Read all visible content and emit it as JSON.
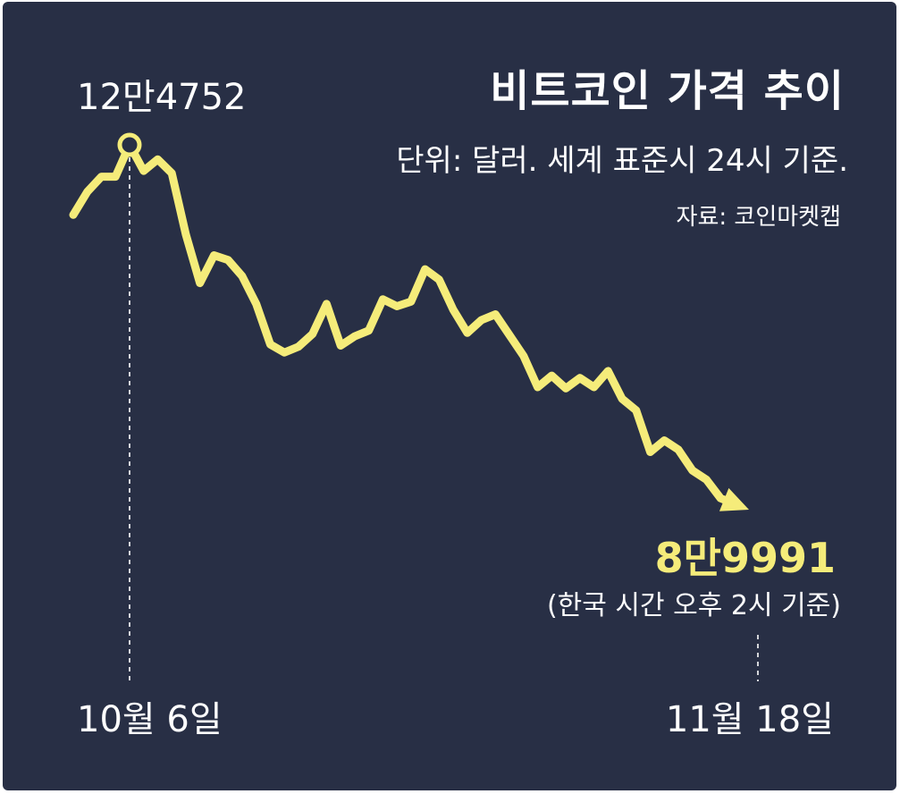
{
  "chart_data": {
    "type": "line",
    "title": "비트코인 가격 추이",
    "subtitle": "단위: 달러. 세계 표준시 24시 기준.",
    "source": "자료: 코인마켓캡",
    "x_start_label": "10월 6일",
    "x_end_label": "11월 18일",
    "start_date": "10월 6일",
    "peak": {
      "label": "12만4752",
      "value": 124752,
      "date": "10월 6일"
    },
    "end": {
      "label": "8만9991",
      "value": 89991,
      "note": "(한국 시간 오후 2시 기준)"
    },
    "series": [
      {
        "x": [
          "10-02",
          "10-03",
          "10-04",
          "10-05",
          "10-06",
          "10-07",
          "10-08",
          "10-09",
          "10-10",
          "10-11",
          "10-12",
          "10-13",
          "10-14",
          "10-15",
          "10-16",
          "10-17",
          "10-18",
          "10-19",
          "10-20",
          "10-21",
          "10-22",
          "10-23",
          "10-24",
          "10-25",
          "10-26",
          "10-27",
          "10-28",
          "10-29",
          "10-30",
          "10-31",
          "11-01",
          "11-02",
          "11-03",
          "11-04",
          "11-05",
          "11-06",
          "11-07",
          "11-08",
          "11-09",
          "11-10",
          "11-11",
          "11-12",
          "11-13",
          "11-14",
          "11-15",
          "11-16",
          "11-17",
          "11-18"
        ],
        "values": [
          118700,
          120700,
          122000,
          122000,
          124752,
          122500,
          123500,
          122300,
          117000,
          112800,
          115200,
          114800,
          113400,
          111000,
          107500,
          106800,
          107300,
          108400,
          111000,
          107400,
          108200,
          108700,
          111400,
          110800,
          111200,
          114000,
          113100,
          110500,
          108500,
          109600,
          110100,
          108300,
          106500,
          103800,
          104800,
          103700,
          104600,
          103800,
          105200,
          102800,
          101800,
          98200,
          99200,
          98400,
          96600,
          95800,
          94200,
          89991
        ]
      }
    ],
    "ylim": [
      86000,
      128000
    ],
    "grid": false,
    "legend": "none",
    "line_color": "#f5ec7a",
    "background_color": "#282f45"
  }
}
